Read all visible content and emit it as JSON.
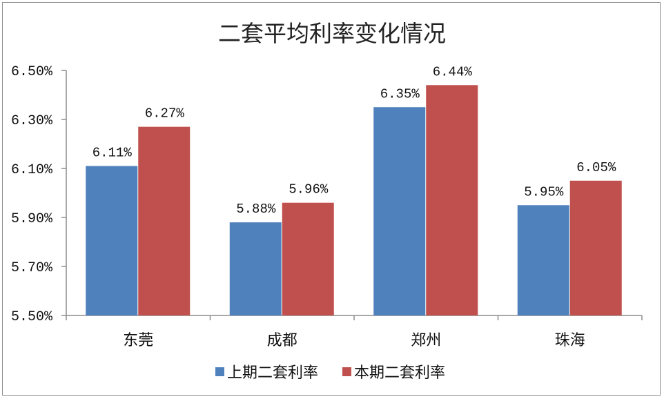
{
  "chart_data": {
    "type": "bar",
    "title": "二套平均利率变化情况",
    "categories": [
      "东莞",
      "成都",
      "郑州",
      "珠海"
    ],
    "series": [
      {
        "name": "上期二套利率",
        "color": "#4f81bd",
        "values": [
          6.11,
          5.88,
          6.35,
          5.95
        ],
        "labels": [
          "6.11%",
          "5.88%",
          "6.35%",
          "5.95%"
        ]
      },
      {
        "name": "本期二套利率",
        "color": "#c0504d",
        "values": [
          6.27,
          5.96,
          6.44,
          6.05
        ],
        "labels": [
          "6.27%",
          "5.96%",
          "6.44%",
          "6.05%"
        ]
      }
    ],
    "ylim": [
      5.5,
      6.5
    ],
    "yticks": [
      5.5,
      5.7,
      5.9,
      6.1,
      6.3,
      6.5
    ],
    "ytick_labels": [
      "5.50%",
      "5.70%",
      "5.90%",
      "6.10%",
      "6.30%",
      "6.50%"
    ],
    "grid": false,
    "legend_position": "bottom"
  }
}
